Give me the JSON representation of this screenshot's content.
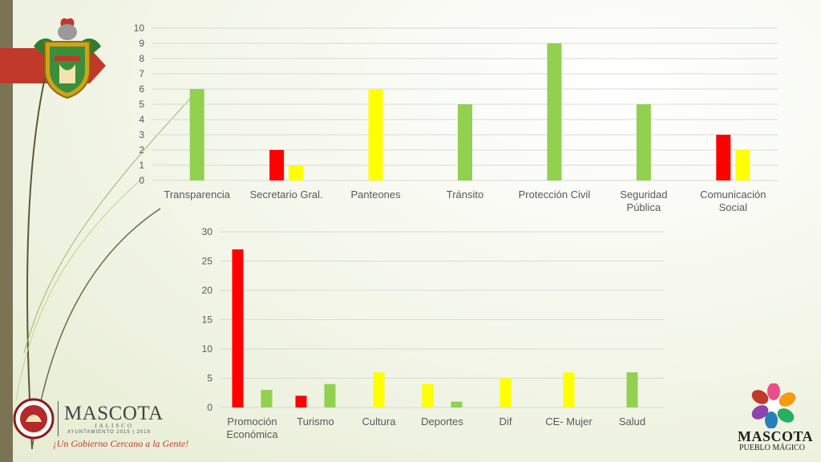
{
  "colors": {
    "red": "#ff0000",
    "yellow": "#ffff00",
    "green": "#92d050",
    "grid": "#d9d9d9",
    "axis_text": "#595959",
    "left_bar": "#7b7454",
    "flag": "#c0392b"
  },
  "chart_data": [
    {
      "type": "bar",
      "categories": [
        "Transparencia",
        "Secretario Gral.",
        "Panteones",
        "Tránsito",
        "Protección Civil",
        "Seguridad Pública",
        "Comunicación Social"
      ],
      "category_lines": [
        [
          "Transparencia"
        ],
        [
          "Secretario Gral."
        ],
        [
          "Panteones"
        ],
        [
          "Tránsito"
        ],
        [
          "Protección Civil"
        ],
        [
          "Seguridad",
          "Pública"
        ],
        [
          "Comunicación",
          "Social"
        ]
      ],
      "bars": [
        [
          {
            "color": "green",
            "value": 6
          }
        ],
        [
          {
            "color": "red",
            "value": 2
          },
          {
            "color": "yellow",
            "value": 1
          }
        ],
        [
          {
            "color": "yellow",
            "value": 6
          }
        ],
        [
          {
            "color": "green",
            "value": 5
          }
        ],
        [
          {
            "color": "green",
            "value": 9
          }
        ],
        [
          {
            "color": "green",
            "value": 5
          }
        ],
        [
          {
            "color": "red",
            "value": 3
          },
          {
            "color": "yellow",
            "value": 2
          }
        ]
      ],
      "ylim": [
        0,
        10
      ],
      "yticks": [
        0,
        1,
        2,
        3,
        4,
        5,
        6,
        7,
        8,
        9,
        10
      ],
      "grid": true
    },
    {
      "type": "bar",
      "categories": [
        "Promoción Económica",
        "Turismo",
        "Cultura",
        "Deportes",
        "Dif",
        "CE- Mujer",
        "Salud"
      ],
      "category_lines": [
        [
          "Promoción",
          "Económica"
        ],
        [
          "Turismo"
        ],
        [
          "Cultura"
        ],
        [
          "Deportes"
        ],
        [
          "Dif"
        ],
        [
          "CE- Mujer"
        ],
        [
          "Salud"
        ]
      ],
      "bars": [
        [
          {
            "color": "red",
            "value": 27
          },
          {
            "color": "green",
            "value": 3
          }
        ],
        [
          {
            "color": "red",
            "value": 2
          },
          {
            "color": "green",
            "value": 4
          }
        ],
        [
          {
            "color": "yellow",
            "value": 6
          }
        ],
        [
          {
            "color": "yellow",
            "value": 4
          },
          {
            "color": "green",
            "value": 1
          }
        ],
        [
          {
            "color": "yellow",
            "value": 5
          }
        ],
        [
          {
            "color": "yellow",
            "value": 6
          }
        ],
        [
          {
            "color": "green",
            "value": 6
          }
        ]
      ],
      "ylim": [
        0,
        30
      ],
      "yticks": [
        0,
        5,
        10,
        15,
        20,
        25,
        30
      ],
      "grid": true
    }
  ],
  "footer_logo": {
    "name": "MASCOTA",
    "state": "JALISCO",
    "period": "AYUNTAMIENTO 2015 | 2018",
    "slogan": "¡Un Gobierno Cercano a la Gente!"
  },
  "pueblo_logo": {
    "name": "MASCOTA",
    "tag": "PUEBLO MÁGICO"
  },
  "icons": [
    "coat-of-arms-icon",
    "municipal-seal-icon",
    "pueblo-magico-flower-icon"
  ]
}
